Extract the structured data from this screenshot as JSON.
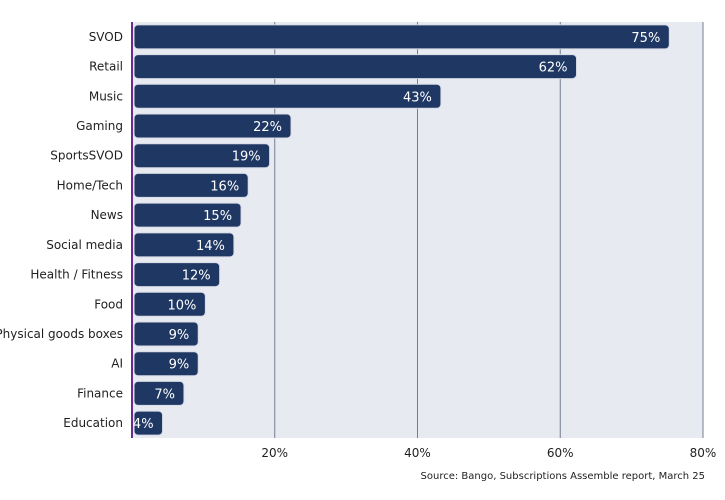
{
  "chart_data": {
    "type": "bar",
    "orientation": "horizontal",
    "categories": [
      "SVOD",
      "Retail",
      "Music",
      "Gaming",
      "SportsSVOD",
      "Home/Tech",
      "News",
      "Social media",
      "Health / Fitness",
      "Food",
      "Physical goods boxes",
      "AI",
      "Finance",
      "Education"
    ],
    "values": [
      75,
      62,
      43,
      22,
      19,
      16,
      15,
      14,
      12,
      10,
      9,
      9,
      7,
      4
    ],
    "value_labels": [
      "75%",
      "62%",
      "43%",
      "22%",
      "19%",
      "16%",
      "15%",
      "14%",
      "12%",
      "10%",
      "9%",
      "9%",
      "7%",
      "4%"
    ],
    "x_ticks": [
      20,
      40,
      60,
      80
    ],
    "x_tick_labels": [
      "20%",
      "40%",
      "60%",
      "80%"
    ],
    "xlim": [
      0,
      80
    ],
    "grid": true,
    "colors": {
      "bar": "#1f3763",
      "bar_stroke": "#d9dce6",
      "plot_bg": "#e8eaf1",
      "axis": "#6b2c91",
      "grid": "#747c90"
    },
    "source": "Source: Bango, Subscriptions Assemble report, March 25"
  }
}
